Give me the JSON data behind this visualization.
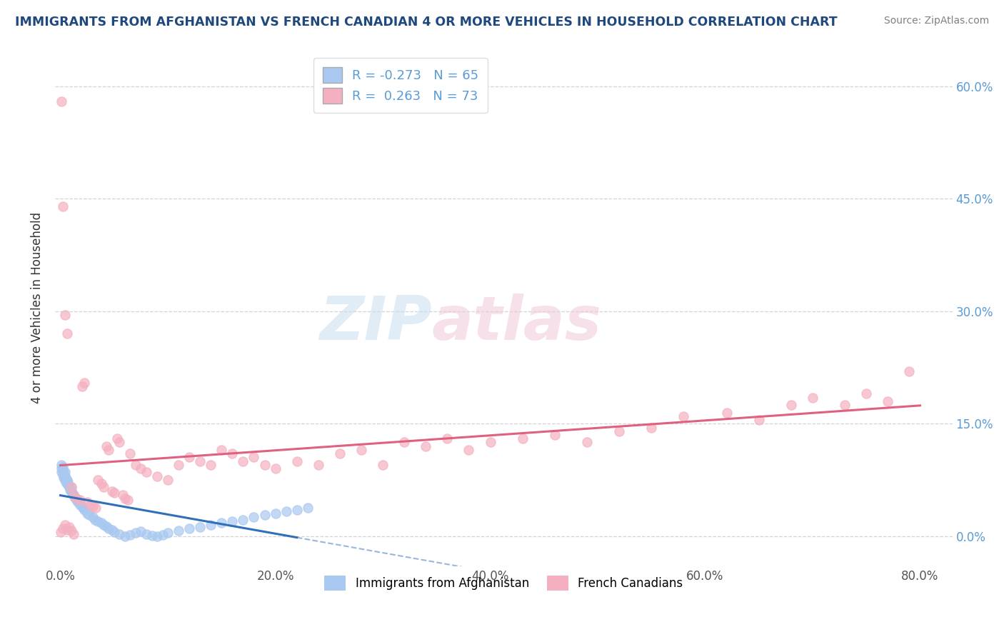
{
  "title": "IMMIGRANTS FROM AFGHANISTAN VS FRENCH CANADIAN 4 OR MORE VEHICLES IN HOUSEHOLD CORRELATION CHART",
  "source": "Source: ZipAtlas.com",
  "ylabel": "4 or more Vehicles in Household",
  "xlabel_ticks": [
    "0.0%",
    "20.0%",
    "40.0%",
    "60.0%",
    "80.0%"
  ],
  "ylabel_ticks_right": [
    "60.0%",
    "45.0%",
    "30.0%",
    "15.0%",
    "0.0%"
  ],
  "xlim": [
    -0.005,
    0.83
  ],
  "ylim": [
    -0.04,
    0.65
  ],
  "blue_color": "#3070b8",
  "pink_line_color": "#e06080",
  "pink_scatter_color": "#f4b0c0",
  "blue_scatter_color": "#a8c8f0",
  "watermark_zip": "ZIP",
  "watermark_atlas": "atlas",
  "blue_R": -0.273,
  "blue_N": 65,
  "pink_R": 0.263,
  "pink_N": 73,
  "title_color": "#1f497d",
  "source_color": "#808080",
  "tick_label_color_right": "#5b9bd5",
  "grid_color": "#c8c8c8",
  "background_color": "#ffffff",
  "blue_scatter_x": [
    0.001,
    0.001,
    0.001,
    0.002,
    0.002,
    0.002,
    0.003,
    0.003,
    0.004,
    0.004,
    0.004,
    0.005,
    0.005,
    0.006,
    0.006,
    0.007,
    0.007,
    0.008,
    0.009,
    0.01,
    0.01,
    0.011,
    0.012,
    0.013,
    0.014,
    0.015,
    0.016,
    0.018,
    0.02,
    0.021,
    0.022,
    0.025,
    0.027,
    0.03,
    0.032,
    0.035,
    0.038,
    0.04,
    0.043,
    0.045,
    0.048,
    0.05,
    0.055,
    0.06,
    0.065,
    0.07,
    0.075,
    0.08,
    0.085,
    0.09,
    0.095,
    0.1,
    0.11,
    0.12,
    0.13,
    0.14,
    0.15,
    0.16,
    0.17,
    0.18,
    0.19,
    0.2,
    0.21,
    0.22,
    0.23
  ],
  "blue_scatter_y": [
    0.085,
    0.09,
    0.095,
    0.082,
    0.088,
    0.092,
    0.078,
    0.085,
    0.075,
    0.08,
    0.085,
    0.072,
    0.078,
    0.07,
    0.075,
    0.068,
    0.072,
    0.065,
    0.062,
    0.06,
    0.065,
    0.058,
    0.055,
    0.052,
    0.05,
    0.048,
    0.045,
    0.042,
    0.04,
    0.038,
    0.035,
    0.03,
    0.028,
    0.025,
    0.022,
    0.02,
    0.018,
    0.015,
    0.013,
    0.01,
    0.008,
    0.005,
    0.003,
    0.0,
    0.002,
    0.004,
    0.006,
    0.003,
    0.001,
    0.0,
    0.002,
    0.004,
    0.007,
    0.01,
    0.012,
    0.015,
    0.018,
    0.02,
    0.022,
    0.025,
    0.028,
    0.03,
    0.033,
    0.035,
    0.038
  ],
  "pink_scatter_x": [
    0.001,
    0.002,
    0.004,
    0.006,
    0.01,
    0.012,
    0.015,
    0.018,
    0.02,
    0.022,
    0.025,
    0.028,
    0.03,
    0.033,
    0.035,
    0.038,
    0.04,
    0.043,
    0.045,
    0.048,
    0.05,
    0.053,
    0.055,
    0.058,
    0.06,
    0.063,
    0.065,
    0.07,
    0.075,
    0.08,
    0.09,
    0.1,
    0.11,
    0.12,
    0.13,
    0.14,
    0.15,
    0.16,
    0.17,
    0.18,
    0.19,
    0.2,
    0.22,
    0.24,
    0.26,
    0.28,
    0.3,
    0.32,
    0.34,
    0.36,
    0.38,
    0.4,
    0.43,
    0.46,
    0.49,
    0.52,
    0.55,
    0.58,
    0.62,
    0.65,
    0.68,
    0.7,
    0.73,
    0.75,
    0.77,
    0.79,
    0.0,
    0.002,
    0.004,
    0.006,
    0.008,
    0.01,
    0.012
  ],
  "pink_scatter_y": [
    0.58,
    0.44,
    0.295,
    0.27,
    0.065,
    0.055,
    0.05,
    0.048,
    0.2,
    0.205,
    0.045,
    0.042,
    0.04,
    0.038,
    0.075,
    0.07,
    0.065,
    0.12,
    0.115,
    0.06,
    0.058,
    0.13,
    0.125,
    0.055,
    0.05,
    0.048,
    0.11,
    0.095,
    0.09,
    0.085,
    0.08,
    0.075,
    0.095,
    0.105,
    0.1,
    0.095,
    0.115,
    0.11,
    0.1,
    0.105,
    0.095,
    0.09,
    0.1,
    0.095,
    0.11,
    0.115,
    0.095,
    0.125,
    0.12,
    0.13,
    0.115,
    0.125,
    0.13,
    0.135,
    0.125,
    0.14,
    0.145,
    0.16,
    0.165,
    0.155,
    0.175,
    0.185,
    0.175,
    0.19,
    0.18,
    0.22,
    0.005,
    0.01,
    0.015,
    0.008,
    0.012,
    0.007,
    0.003
  ]
}
